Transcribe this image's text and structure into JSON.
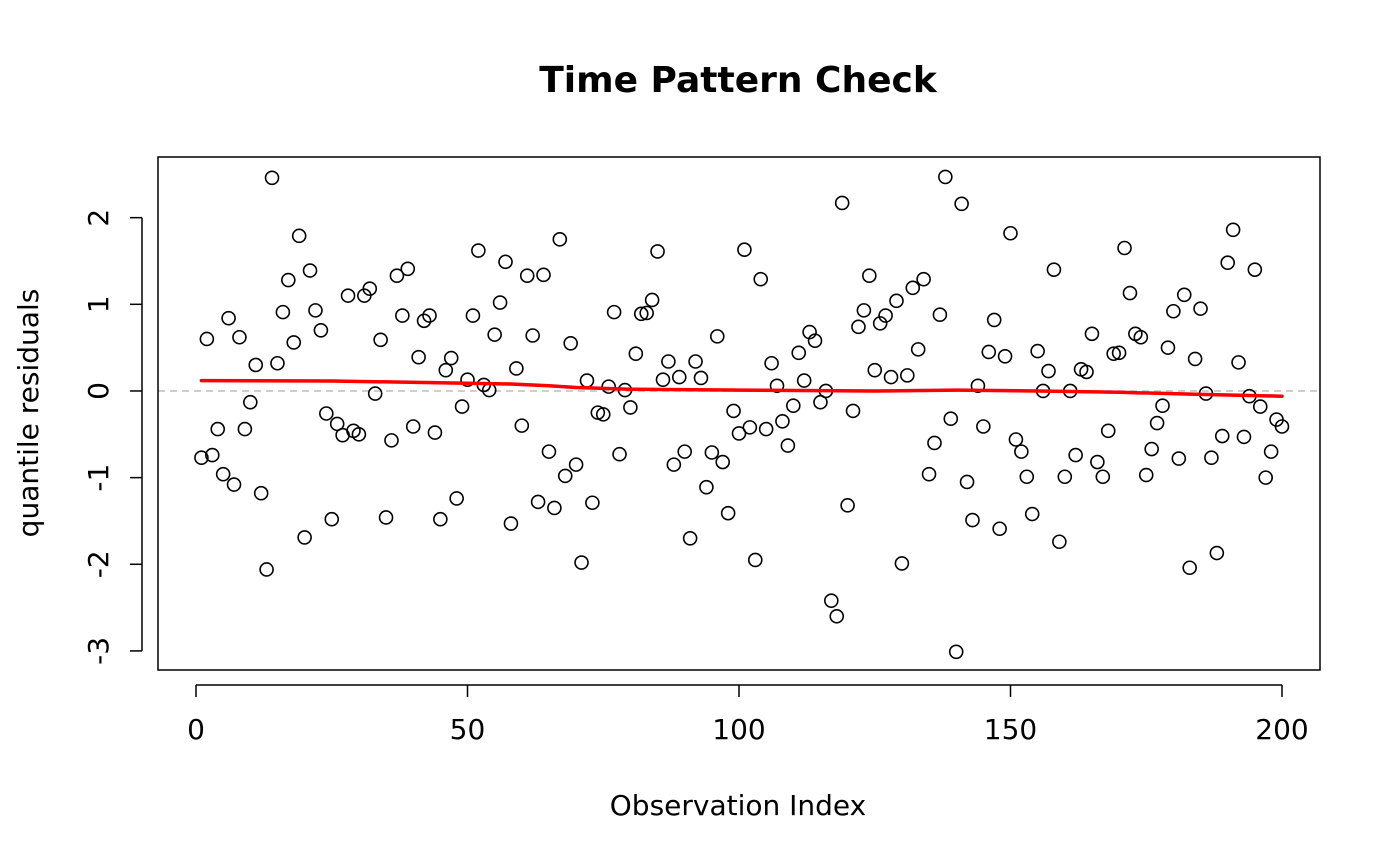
{
  "chart_data": {
    "type": "scatter",
    "title": "Time Pattern Check",
    "xlabel": "Observation Index",
    "ylabel": "quantile residuals",
    "xlim": [
      -7,
      207
    ],
    "ylim": [
      -3.22,
      2.7
    ],
    "x_ticks": [
      0,
      50,
      100,
      150,
      200
    ],
    "x_tick_labels": [
      "0",
      "50",
      "100",
      "150",
      "200"
    ],
    "y_ticks": [
      -3,
      -2,
      -1,
      0,
      1,
      2
    ],
    "y_tick_labels": [
      "-3",
      "-2",
      "-1",
      "0",
      "1",
      "2"
    ],
    "grid": false,
    "reference_line": {
      "y": 0,
      "style": "dashed",
      "color": "#bebebe"
    },
    "point_style": {
      "shape": "open-circle",
      "color": "#000000"
    },
    "smooth_line": {
      "color": "#ff0000",
      "x": [
        1,
        25,
        50,
        58,
        65,
        70,
        80,
        100,
        125,
        140,
        155,
        170,
        185,
        200
      ],
      "y": [
        0.12,
        0.115,
        0.09,
        0.08,
        0.06,
        0.04,
        0.02,
        0.01,
        0.0,
        0.01,
        0.0,
        -0.015,
        -0.04,
        -0.06
      ]
    },
    "x": [
      1,
      2,
      3,
      4,
      5,
      6,
      7,
      8,
      9,
      10,
      11,
      12,
      13,
      14,
      15,
      16,
      17,
      18,
      19,
      20,
      21,
      22,
      23,
      24,
      25,
      26,
      27,
      28,
      29,
      30,
      31,
      32,
      33,
      34,
      35,
      36,
      37,
      38,
      39,
      40,
      41,
      42,
      43,
      44,
      45,
      46,
      47,
      48,
      49,
      50,
      51,
      52,
      53,
      54,
      55,
      56,
      57,
      58,
      59,
      60,
      61,
      62,
      63,
      64,
      65,
      66,
      67,
      68,
      69,
      70,
      71,
      72,
      73,
      74,
      75,
      76,
      77,
      78,
      79,
      80,
      81,
      82,
      83,
      84,
      85,
      86,
      87,
      88,
      89,
      90,
      91,
      92,
      93,
      94,
      95,
      96,
      97,
      98,
      99,
      100,
      101,
      102,
      103,
      104,
      105,
      106,
      107,
      108,
      109,
      110,
      111,
      112,
      113,
      114,
      115,
      116,
      117,
      118,
      119,
      120,
      121,
      122,
      123,
      124,
      125,
      126,
      127,
      128,
      129,
      130,
      131,
      132,
      133,
      134,
      135,
      136,
      137,
      138,
      139,
      140,
      141,
      142,
      143,
      144,
      145,
      146,
      147,
      148,
      149,
      150,
      151,
      152,
      153,
      154,
      155,
      156,
      157,
      158,
      159,
      160,
      161,
      162,
      163,
      164,
      165,
      166,
      167,
      168,
      169,
      170,
      171,
      172,
      173,
      174,
      175,
      176,
      177,
      178,
      179,
      180,
      181,
      182,
      183,
      184,
      185,
      186,
      187,
      188,
      189,
      190,
      191,
      192,
      193,
      194,
      195,
      196,
      197,
      198,
      199,
      200
    ],
    "y": [
      -0.77,
      0.6,
      -0.74,
      -0.44,
      -0.96,
      0.84,
      -1.08,
      0.62,
      -0.44,
      -0.13,
      0.3,
      -1.18,
      -2.06,
      2.46,
      0.32,
      0.91,
      1.28,
      0.56,
      1.79,
      -1.69,
      1.39,
      0.93,
      0.7,
      -0.26,
      -1.48,
      -0.38,
      -0.51,
      1.1,
      -0.46,
      -0.5,
      1.1,
      1.18,
      -0.03,
      0.59,
      -1.46,
      -0.57,
      1.33,
      0.87,
      1.41,
      -0.41,
      0.39,
      0.81,
      0.87,
      -0.48,
      -1.48,
      0.24,
      0.38,
      -1.24,
      -0.18,
      0.13,
      0.87,
      1.62,
      0.07,
      0.01,
      0.65,
      1.02,
      1.49,
      -1.53,
      0.26,
      -0.4,
      1.33,
      0.64,
      -1.28,
      1.34,
      -0.7,
      -1.35,
      1.75,
      -0.98,
      0.55,
      -0.85,
      -1.98,
      0.12,
      -1.29,
      -0.25,
      -0.27,
      0.05,
      0.91,
      -0.73,
      0.01,
      -0.19,
      0.43,
      0.89,
      0.9,
      1.05,
      1.61,
      0.13,
      0.34,
      -0.85,
      0.16,
      -0.7,
      -1.7,
      0.34,
      0.15,
      -1.11,
      -0.71,
      0.63,
      -0.82,
      -1.41,
      -0.23,
      -0.49,
      1.63,
      -0.42,
      -1.95,
      1.29,
      -0.44,
      0.32,
      0.06,
      -0.35,
      -0.63,
      -0.17,
      0.44,
      0.12,
      0.68,
      0.58,
      -0.13,
      0.0,
      -2.42,
      -2.6,
      2.17,
      -1.32,
      -0.23,
      0.74,
      0.93,
      1.33,
      0.24,
      0.78,
      0.87,
      0.16,
      1.04,
      -1.99,
      0.18,
      1.19,
      0.48,
      1.29,
      -0.96,
      -0.6,
      0.88,
      2.47,
      -0.32,
      -3.01,
      2.16,
      -1.05,
      -1.49,
      0.06,
      -0.41,
      0.45,
      0.82,
      -1.59,
      0.4,
      1.82,
      -0.56,
      -0.7,
      -0.99,
      -1.42,
      0.46,
      0.0,
      0.23,
      1.4,
      -1.74,
      -0.99,
      0.0,
      -0.74,
      0.25,
      0.22,
      0.66,
      -0.82,
      -0.99,
      -0.46,
      0.43,
      0.44,
      1.65,
      1.13,
      0.66,
      0.62,
      -0.97,
      -0.67,
      -0.37,
      -0.17,
      0.5,
      0.92,
      -0.78,
      1.11,
      -2.04,
      0.37,
      0.95,
      -0.03,
      -0.77,
      -1.87,
      -0.52,
      1.48,
      1.86,
      0.33,
      -0.53,
      -0.06,
      1.4,
      -0.18,
      -1.0,
      -0.7,
      -0.33,
      -0.41
    ]
  }
}
